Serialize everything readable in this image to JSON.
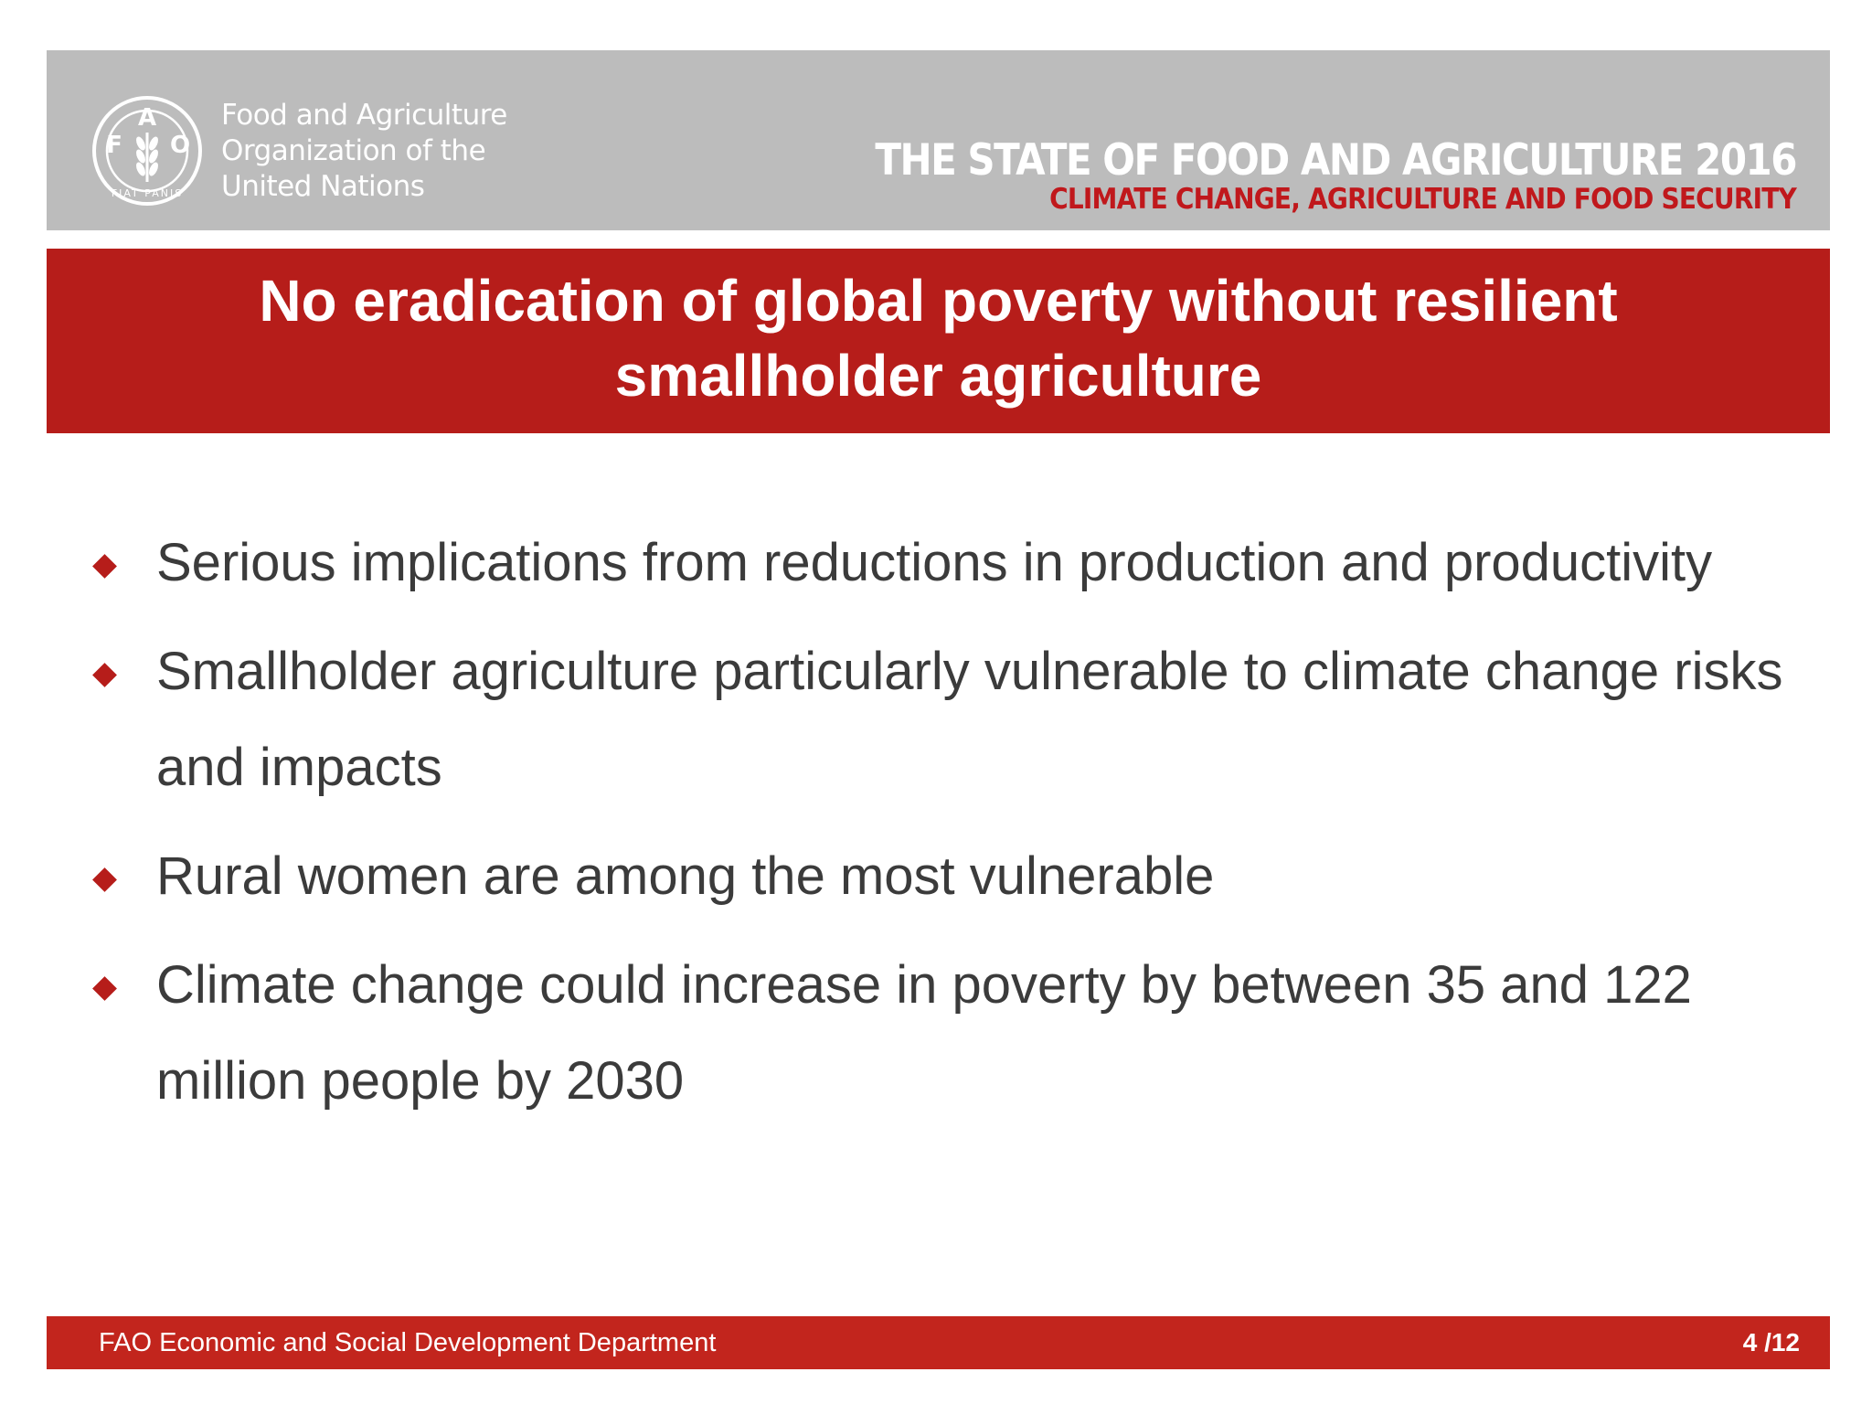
{
  "header": {
    "org_name_lines": [
      "Food and Agriculture",
      "Organization of the",
      "United Nations"
    ],
    "logo": {
      "icon": "fao-logo-icon",
      "letters": [
        "F",
        "A",
        "O"
      ],
      "motto": "FIAT PANIS"
    },
    "publication_title": "THE STATE OF FOOD AND AGRICULTURE 2016",
    "publication_subtitle": "CLIMATE CHANGE, AGRICULTURE AND FOOD SECURITY"
  },
  "slide": {
    "title_lines": [
      "No eradication of global poverty without resilient",
      "smallholder agriculture"
    ],
    "bullets": [
      "Serious implications from reductions in production and productivity",
      "Smallholder agriculture particularly vulnerable to climate change risks and impacts",
      "Rural women are among the most vulnerable",
      "Climate change could increase in poverty by between 35 and 122 million people by 2030"
    ],
    "bullet_marker_icon": "diamond-bullet-icon"
  },
  "footer": {
    "department": "FAO Economic and Social Development Department",
    "page_indicator": "4 /12"
  },
  "colors": {
    "header_gray": "#bcbcbc",
    "accent_red": "#b61d1a",
    "footer_red": "#c2251d",
    "body_text": "#3b3b3b"
  }
}
